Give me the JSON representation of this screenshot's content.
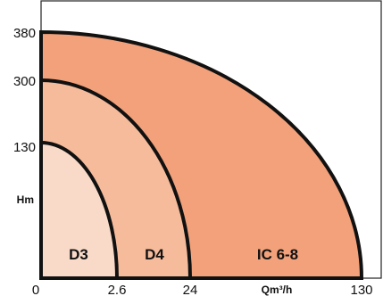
{
  "chart_data": {
    "type": "area",
    "title": "",
    "xlabel": "Qm³/h",
    "ylabel": "Hm",
    "x_ticks": [
      "0",
      "2.6",
      "24",
      "130"
    ],
    "y_ticks": [
      "130",
      "300",
      "380"
    ],
    "series": [
      {
        "name": "IC 6-8",
        "max_flow": 130,
        "max_head": 380,
        "color": "#f2a17a"
      },
      {
        "name": "D4",
        "max_flow": 24,
        "max_head": 300,
        "color": "#f6bb9b"
      },
      {
        "name": "D3",
        "max_flow": 2.6,
        "max_head": 130,
        "color": "#f9dac8"
      }
    ],
    "grid": false,
    "legend": "none"
  }
}
